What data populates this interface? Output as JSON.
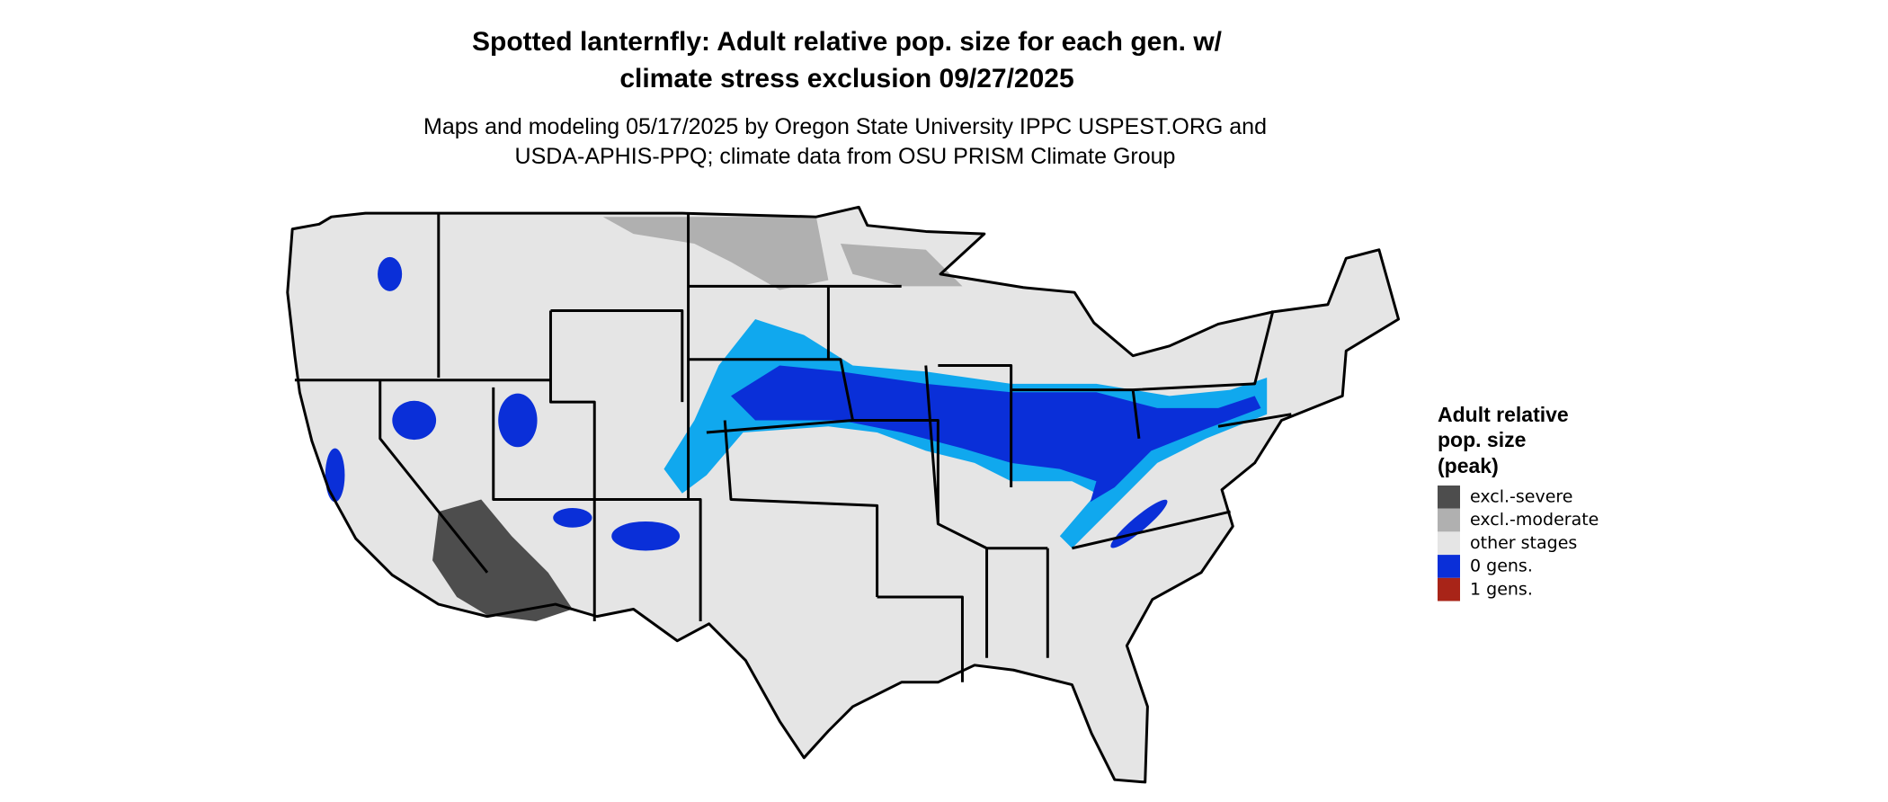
{
  "title": [
    "Spotted lanternfly: Adult relative pop. size for each gen. w/",
    "climate stress exclusion 09/27/2025"
  ],
  "subtitle": [
    "Maps and modeling 05/17/2025 by Oregon State University IPPC USPEST.ORG and",
    "USDA-APHIS-PPQ; climate data from OSU PRISM Climate Group"
  ],
  "legend": {
    "title": [
      "Adult relative",
      "pop. size",
      "(peak)"
    ],
    "items": [
      {
        "label": "excl.-severe",
        "color": "#4d4d4d"
      },
      {
        "label": "excl.-moderate",
        "color": "#b0b0b0"
      },
      {
        "label": "other stages",
        "color": "#e5e5e5"
      },
      {
        "label": "0 gens.",
        "color": "#0a2fd8"
      },
      {
        "label": "1 gens.",
        "color": "#a82418"
      }
    ]
  }
}
